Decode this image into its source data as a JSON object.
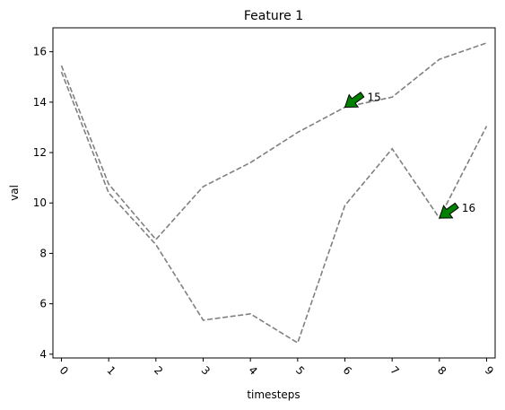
{
  "chart_data": {
    "type": "line",
    "title": "Feature 1",
    "xlabel": "timesteps",
    "ylabel": "val",
    "x": [
      0,
      1,
      2,
      3,
      4,
      5,
      6,
      7,
      8,
      9
    ],
    "x_tick_labels": [
      "0",
      "1",
      "2",
      "3",
      "4",
      "5",
      "6",
      "7",
      "8",
      "9"
    ],
    "y_ticks": [
      4,
      6,
      8,
      10,
      12,
      14,
      16
    ],
    "y_tick_labels": [
      "4",
      "6",
      "8",
      "10",
      "12",
      "14",
      "16"
    ],
    "xlim": [
      -0.18,
      9.18
    ],
    "ylim": [
      3.85,
      16.95
    ],
    "grid": false,
    "line_style": "dashed",
    "line_color": "#808080",
    "series": [
      {
        "values": [
          15.45,
          10.75,
          8.55,
          10.65,
          11.6,
          12.8,
          13.8,
          14.2,
          15.7,
          16.35
        ]
      },
      {
        "values": [
          15.2,
          10.4,
          8.35,
          5.35,
          5.6,
          4.45,
          9.9,
          12.15,
          9.4,
          13.05
        ]
      }
    ],
    "annotations": [
      {
        "text": "15",
        "x": 6,
        "y": 13.8,
        "color": "#008000"
      },
      {
        "text": "16",
        "x": 8,
        "y": 9.4,
        "color": "#008000"
      }
    ]
  }
}
